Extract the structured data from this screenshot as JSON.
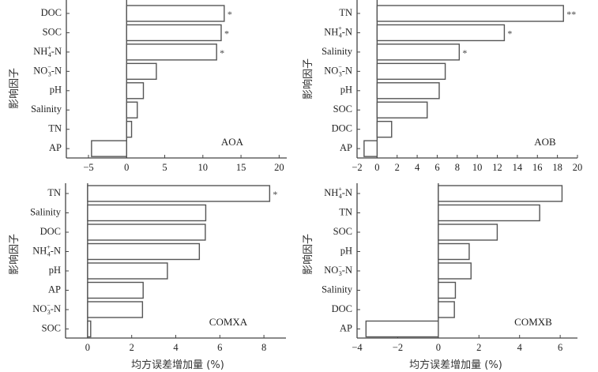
{
  "figure": {
    "y_axis_title": "影响因子",
    "x_axis_title": "均方误差增加量 (%)"
  },
  "chart_data": [
    {
      "type": "bar",
      "orientation": "horizontal",
      "panel": "AOA",
      "ylabel": "影响因子",
      "xlabel": "",
      "categories": [
        "DOC",
        "SOC",
        "NH4+-N",
        "NO3--N",
        "pH",
        "Salinity",
        "TN",
        "AP"
      ],
      "values": [
        12.8,
        12.4,
        11.8,
        3.9,
        2.2,
        1.4,
        0.65,
        -4.6
      ],
      "significance": [
        "*",
        "*",
        "*",
        "",
        "",
        "",
        "",
        ""
      ],
      "xticks": [
        -5,
        0,
        5,
        10,
        15,
        20
      ],
      "xlim": [
        -7.9,
        21
      ]
    },
    {
      "type": "bar",
      "orientation": "horizontal",
      "panel": "AOB",
      "ylabel": "影响因子",
      "xlabel": "",
      "categories": [
        "TN",
        "NH4+-N",
        "Salinity",
        "NO3--N",
        "pH",
        "SOC",
        "DOC",
        "AP"
      ],
      "values": [
        18.6,
        12.7,
        8.2,
        6.8,
        6.2,
        5.0,
        1.45,
        -1.3
      ],
      "significance": [
        "**",
        "*",
        "*",
        "",
        "",
        "",
        "",
        ""
      ],
      "xticks": [
        -2,
        0,
        2,
        4,
        6,
        8,
        10,
        12,
        14,
        16,
        18,
        20
      ],
      "xlim": [
        -2,
        20
      ]
    },
    {
      "type": "bar",
      "orientation": "horizontal",
      "panel": "COMXA",
      "ylabel": "影响因子",
      "xlabel": "均方误差增加量 (%)",
      "categories": [
        "TN",
        "Salinity",
        "DOC",
        "NH4+-N",
        "pH",
        "AP",
        "NO3--N",
        "SOC"
      ],
      "values": [
        8.26,
        5.36,
        5.34,
        5.07,
        3.62,
        2.52,
        2.49,
        0.14
      ],
      "significance": [
        "*",
        "",
        "",
        "",
        "",
        "",
        "",
        ""
      ],
      "xticks": [
        0,
        2,
        4,
        6,
        8
      ],
      "xlim": [
        -1,
        9
      ]
    },
    {
      "type": "bar",
      "orientation": "horizontal",
      "panel": "COMXB",
      "ylabel": "影响因子",
      "xlabel": "均方误差增加量 (%)",
      "categories": [
        "NH4+-N",
        "TN",
        "SOC",
        "pH",
        "NO3--N",
        "Salinity",
        "DOC",
        "AP"
      ],
      "values": [
        6.09,
        4.99,
        2.9,
        1.52,
        1.61,
        0.84,
        0.79,
        -3.56
      ],
      "significance": [
        "",
        "",
        "",
        "",
        "",
        "",
        "",
        ""
      ],
      "xticks": [
        -4,
        -2,
        0,
        2,
        4,
        6
      ],
      "xlim": [
        -4,
        6.85
      ]
    }
  ]
}
